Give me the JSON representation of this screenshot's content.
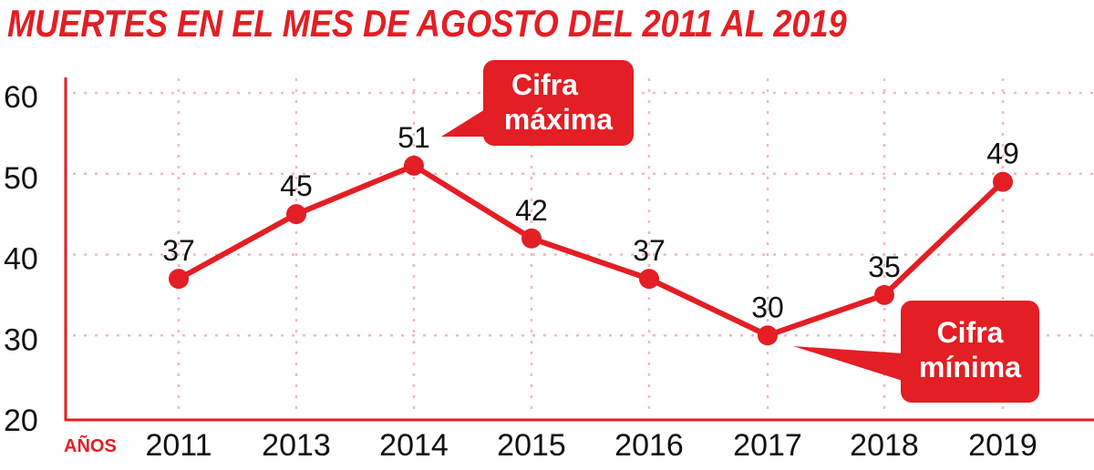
{
  "chart_data": {
    "type": "line",
    "title": "MUERTES EN EL MES DE AGOSTO DEL 2011 AL 2019",
    "xlabel": "AÑOS",
    "ylabel": "",
    "categories": [
      "2011",
      "2013",
      "2014",
      "2015",
      "2016",
      "2017",
      "2018",
      "2019"
    ],
    "values": [
      37,
      45,
      51,
      42,
      37,
      30,
      35,
      49
    ],
    "ylim": [
      20,
      60
    ],
    "yticks": [
      20,
      30,
      40,
      50,
      60
    ],
    "grid": true,
    "annotations": [
      {
        "text_lines": [
          "Cifra",
          "máxima"
        ],
        "target": "2014"
      },
      {
        "text_lines": [
          "Cifra",
          "mínima"
        ],
        "target": "2017"
      }
    ],
    "colors": {
      "accent": "#e31e24",
      "grid": "#f2b8bb",
      "text": "#111111"
    }
  }
}
